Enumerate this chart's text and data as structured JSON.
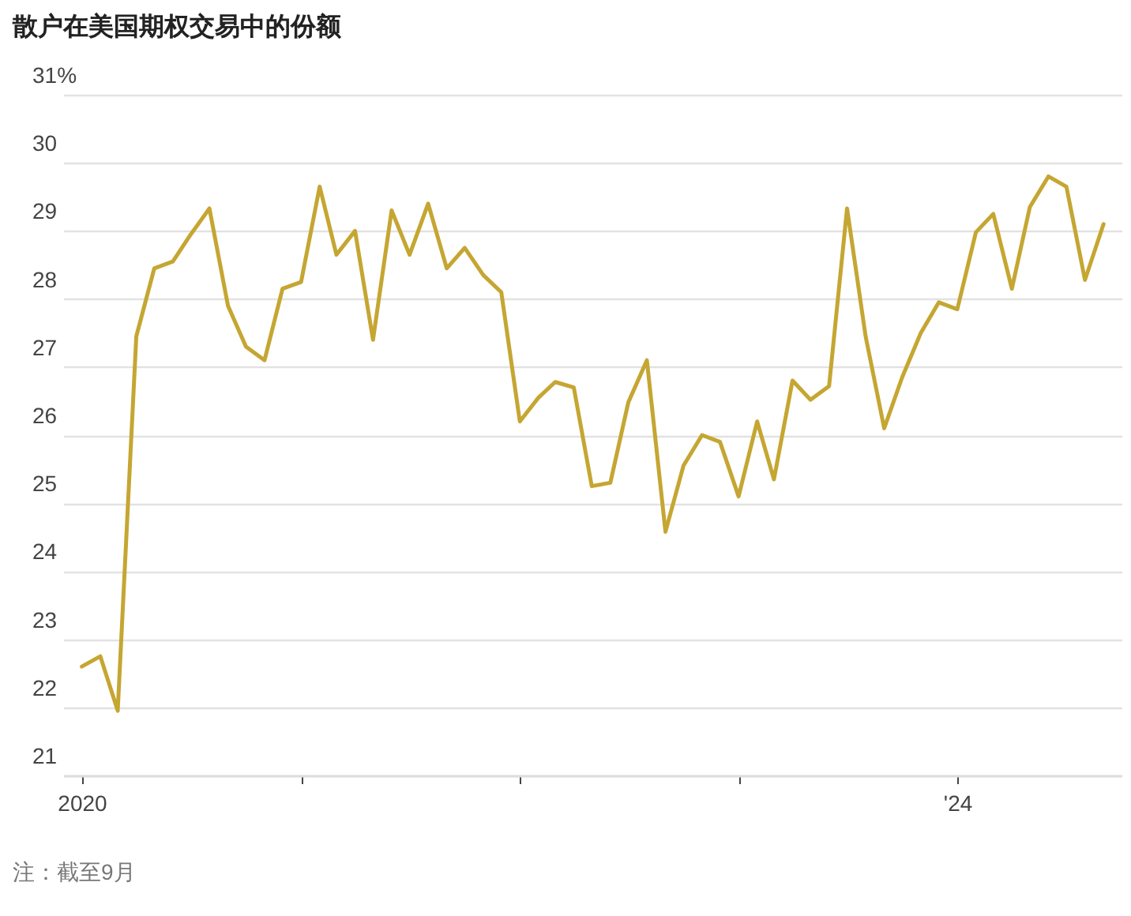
{
  "chart_data": {
    "type": "line",
    "title": "散户在美国期权交易中的份额",
    "x": [
      "2020-01",
      "2020-02",
      "2020-03",
      "2020-04",
      "2020-05",
      "2020-06",
      "2020-07",
      "2020-08",
      "2020-09",
      "2020-10",
      "2020-11",
      "2020-12",
      "2021-01",
      "2021-02",
      "2021-03",
      "2021-04",
      "2021-05",
      "2021-06",
      "2021-07",
      "2021-08",
      "2021-09",
      "2021-10",
      "2021-11",
      "2021-12",
      "2022-01",
      "2022-02",
      "2022-03",
      "2022-04",
      "2022-05",
      "2022-06",
      "2022-07",
      "2022-08",
      "2022-09",
      "2022-10",
      "2022-11",
      "2022-12",
      "2023-01",
      "2023-02",
      "2023-03",
      "2023-04",
      "2023-05",
      "2023-06",
      "2023-07",
      "2023-08",
      "2023-09",
      "2023-10",
      "2023-11",
      "2023-12",
      "2024-01",
      "2024-02",
      "2024-03",
      "2024-04",
      "2024-05",
      "2024-06",
      "2024-07",
      "2024-08",
      "2024-09"
    ],
    "series": [
      {
        "color": "#c5a632",
        "values": [
          22.6,
          22.75,
          21.95,
          27.45,
          28.45,
          28.55,
          28.95,
          29.33,
          27.9,
          27.3,
          27.1,
          28.15,
          28.25,
          29.65,
          28.65,
          29.0,
          27.4,
          29.3,
          28.65,
          29.4,
          28.45,
          28.75,
          28.35,
          28.1,
          26.2,
          26.55,
          26.78,
          26.7,
          25.25,
          25.3,
          26.48,
          27.1,
          24.58,
          25.55,
          26.0,
          25.9,
          25.1,
          26.2,
          25.35,
          26.8,
          26.52,
          26.72,
          29.33,
          27.45,
          26.1,
          26.85,
          27.5,
          27.95,
          27.85,
          28.98,
          29.25,
          28.15,
          29.35,
          29.8,
          29.65,
          28.28,
          29.1
        ]
      }
    ],
    "xlim": [
      "2019-12",
      "2024-10"
    ],
    "xticks": [
      {
        "value": "2020-01",
        "label": "2020"
      },
      {
        "value": "2021-01",
        "label": null
      },
      {
        "value": "2022-01",
        "label": null
      },
      {
        "value": "2023-01",
        "label": null
      },
      {
        "value": "2024-01",
        "label": "'24"
      }
    ],
    "ylim": [
      21,
      31
    ],
    "yticks": [
      21,
      22,
      23,
      24,
      25,
      26,
      27,
      28,
      29,
      30,
      {
        "value": 31,
        "label": "31%"
      }
    ],
    "grid": "y",
    "marker": "none",
    "line_style": "solid",
    "annotations": [
      "注：截至9月"
    ]
  }
}
